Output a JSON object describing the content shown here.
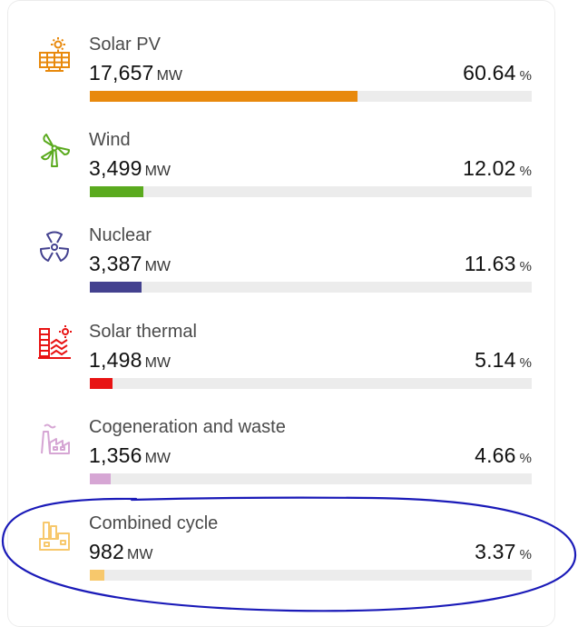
{
  "items": [
    {
      "label": "Solar PV",
      "value": "17,657",
      "unit": "MW",
      "percent": "60.64",
      "percent_unit": "%",
      "share": 0.6064,
      "color": "#e8890c",
      "icon": "solar-panel-icon"
    },
    {
      "label": "Wind",
      "value": "3,499",
      "unit": "MW",
      "percent": "12.02",
      "percent_unit": "%",
      "share": 0.1202,
      "color": "#5aaa1e",
      "icon": "wind-turbine-icon"
    },
    {
      "label": "Nuclear",
      "value": "3,387",
      "unit": "MW",
      "percent": "11.63",
      "percent_unit": "%",
      "share": 0.1163,
      "color": "#43418f",
      "icon": "nuclear-icon"
    },
    {
      "label": "Solar thermal",
      "value": "1,498",
      "unit": "MW",
      "percent": "5.14",
      "percent_unit": "%",
      "share": 0.0514,
      "color": "#e81313",
      "icon": "solar-thermal-icon"
    },
    {
      "label": "Cogeneration and waste",
      "value": "1,356",
      "unit": "MW",
      "percent": "4.66",
      "percent_unit": "%",
      "share": 0.0466,
      "color": "#d6a6d4",
      "icon": "cogeneration-factory-icon"
    },
    {
      "label": "Combined cycle",
      "value": "982",
      "unit": "MW",
      "percent": "3.37",
      "percent_unit": "%",
      "share": 0.0337,
      "color": "#f7c86c",
      "icon": "combined-cycle-plant-icon"
    }
  ],
  "annotation": {
    "color": "#1a1ab8",
    "shape": "hand-drawn-ellipse",
    "target": "Combined cycle"
  }
}
